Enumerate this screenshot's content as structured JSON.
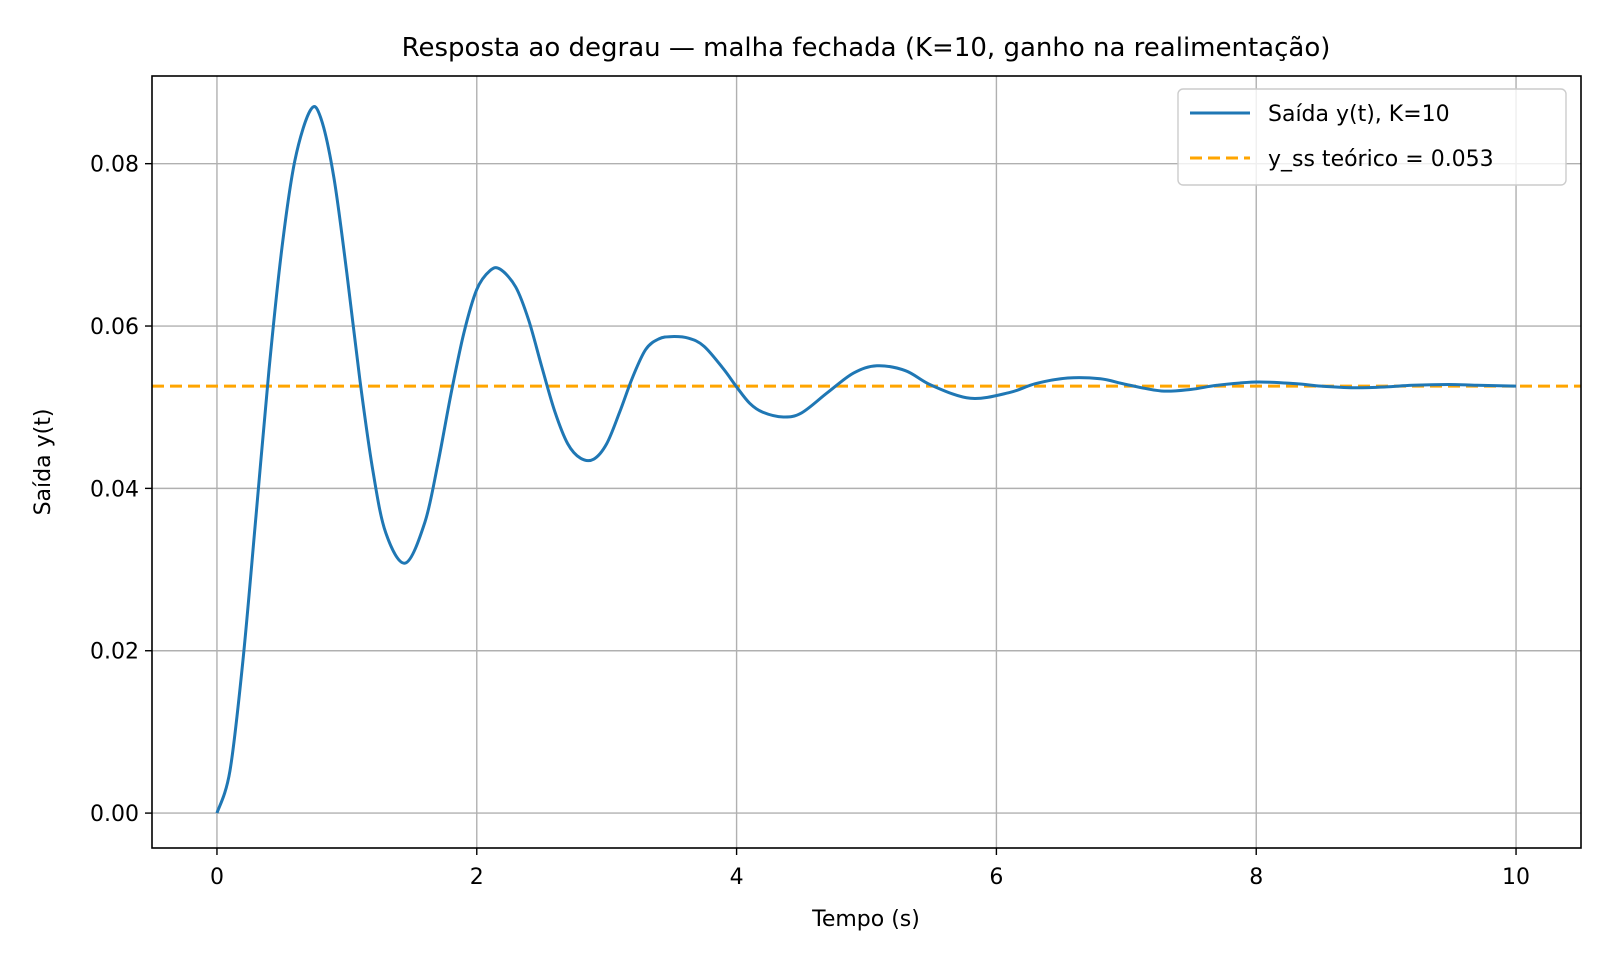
{
  "chart_data": {
    "type": "line",
    "title": "Resposta ao degrau — malha fechada (K=10, ganho na realimentação)",
    "xlabel": "Tempo (s)",
    "ylabel": "Saída y(t)",
    "xlim": [
      -0.5,
      10.5
    ],
    "ylim": [
      -0.0043,
      0.0908
    ],
    "x_ticks": [
      0,
      2,
      4,
      6,
      8,
      10
    ],
    "x_tick_labels": [
      "0",
      "2",
      "4",
      "6",
      "8",
      "10"
    ],
    "y_ticks": [
      0.0,
      0.02,
      0.04,
      0.06,
      0.08
    ],
    "y_tick_labels": [
      "0.00",
      "0.02",
      "0.04",
      "0.06",
      "0.08"
    ],
    "grid": true,
    "legend_position": "top-right",
    "series": [
      {
        "name": "Saída y(t), K=10",
        "color": "#1f77b4",
        "style": "solid",
        "x": [
          0.0,
          0.1,
          0.2,
          0.3,
          0.4,
          0.5,
          0.6,
          0.72,
          0.8,
          0.9,
          1.0,
          1.1,
          1.2,
          1.3,
          1.45,
          1.6,
          1.7,
          1.8,
          1.9,
          2.0,
          2.1,
          2.18,
          2.3,
          2.4,
          2.5,
          2.6,
          2.7,
          2.8,
          2.9,
          3.0,
          3.1,
          3.2,
          3.3,
          3.4,
          3.5,
          3.63,
          3.75,
          3.9,
          4.0,
          4.1,
          4.2,
          4.36,
          4.5,
          4.7,
          4.9,
          5.08,
          5.3,
          5.5,
          5.8,
          6.1,
          6.3,
          6.55,
          6.8,
          7.0,
          7.27,
          7.5,
          7.7,
          8.0,
          8.3,
          8.5,
          8.75,
          9.0,
          9.2,
          9.48,
          9.7,
          10.0
        ],
        "y": [
          0.0,
          0.0052,
          0.0188,
          0.0365,
          0.0545,
          0.0696,
          0.0804,
          0.0866,
          0.0856,
          0.0783,
          0.0665,
          0.0534,
          0.0422,
          0.0345,
          0.0308,
          0.0358,
          0.043,
          0.0515,
          0.0591,
          0.0645,
          0.0668,
          0.067,
          0.0648,
          0.0607,
          0.055,
          0.0495,
          0.0455,
          0.0437,
          0.0436,
          0.0455,
          0.0494,
          0.0537,
          0.0571,
          0.0584,
          0.0587,
          0.0585,
          0.0575,
          0.0547,
          0.0525,
          0.0505,
          0.0494,
          0.0488,
          0.0493,
          0.0518,
          0.0542,
          0.0551,
          0.0545,
          0.0527,
          0.0511,
          0.0518,
          0.0529,
          0.0536,
          0.0535,
          0.0528,
          0.052,
          0.0522,
          0.0527,
          0.0531,
          0.0529,
          0.0526,
          0.0524,
          0.0525,
          0.0527,
          0.0528,
          0.0527,
          0.0526
        ]
      },
      {
        "name": "y_ss teórico = 0.053",
        "color": "#ffa500",
        "style": "dashed",
        "y_constant": 0.0526
      }
    ]
  }
}
